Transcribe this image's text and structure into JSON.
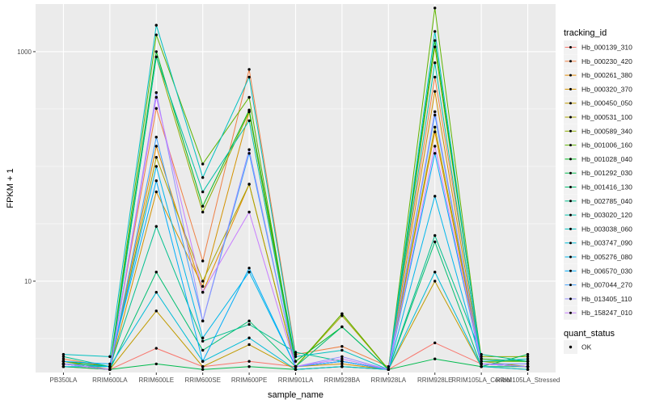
{
  "chart_data": {
    "type": "line",
    "xlabel": "sample_name",
    "ylabel": "FPKM + 1",
    "y_scale": "log10",
    "ylim": [
      1.6,
      2600
    ],
    "y_ticks": [
      10,
      1000
    ],
    "y_tick_labels": [
      "10",
      "1000"
    ],
    "grid": true,
    "legend_position": "right",
    "legend_title": "tracking_id",
    "shape_legend_title": "quant_status",
    "shape_legend_items": [
      "OK"
    ],
    "categories": [
      "PB350LA",
      "RRIM600LA",
      "RRIM600LE",
      "RRIM600SE",
      "RRIM600PE",
      "RRIM901LA",
      "RRIM928BA",
      "RRIM928LA",
      "RRIM928LE",
      "RRIM105LA_Control",
      "RRIM105LA_Stressed"
    ],
    "series": [
      {
        "name": "Hb_000139_310",
        "color": "#F8766D",
        "values": [
          1.9,
          1.7,
          2.6,
          1.8,
          2.0,
          1.8,
          2.0,
          1.7,
          2.9,
          1.9,
          1.8
        ]
      },
      {
        "name": "Hb_000230_420",
        "color": "#EE8044",
        "values": [
          2.1,
          1.8,
          320,
          15,
          700,
          2.3,
          2.7,
          1.8,
          600,
          2.1,
          2.0
        ]
      },
      {
        "name": "Hb_000261_380",
        "color": "#E28A00",
        "values": [
          2.0,
          1.7,
          150,
          8,
          70,
          1.8,
          2.0,
          1.7,
          200,
          1.9,
          1.8
        ]
      },
      {
        "name": "Hb_000320_370",
        "color": "#D39200",
        "values": [
          1.9,
          1.7,
          60,
          9,
          300,
          1.8,
          1.9,
          1.7,
          450,
          1.9,
          1.8
        ]
      },
      {
        "name": "Hb_000450_050",
        "color": "#C09B00",
        "values": [
          1.8,
          1.7,
          5.5,
          1.8,
          2.8,
          1.7,
          1.8,
          1.7,
          10,
          1.8,
          1.7
        ]
      },
      {
        "name": "Hb_000531_100",
        "color": "#A9A400",
        "values": [
          2.0,
          1.7,
          120,
          10,
          70,
          1.8,
          5.0,
          1.7,
          220,
          2.0,
          1.8
        ]
      },
      {
        "name": "Hb_000589_340",
        "color": "#8CAB00",
        "values": [
          1.9,
          1.7,
          900,
          40,
          300,
          1.8,
          5.2,
          1.7,
          1100,
          2.2,
          2.2
        ]
      },
      {
        "name": "Hb_001006_160",
        "color": "#5EB300",
        "values": [
          1.9,
          1.8,
          1400,
          105,
          400,
          1.8,
          5.2,
          1.7,
          2400,
          2.0,
          2.0
        ]
      },
      {
        "name": "Hb_001028_040",
        "color": "#00B81F",
        "values": [
          2.0,
          1.8,
          1000,
          45,
          310,
          2.0,
          4.0,
          1.7,
          1250,
          2.1,
          2.0
        ]
      },
      {
        "name": "Hb_001292_030",
        "color": "#00BB4E",
        "values": [
          1.8,
          1.7,
          1.9,
          1.7,
          1.8,
          1.7,
          1.8,
          1.7,
          2.1,
          1.8,
          2.3
        ]
      },
      {
        "name": "Hb_001416_130",
        "color": "#00BE70",
        "values": [
          1.9,
          1.7,
          12,
          2.5,
          4.5,
          1.8,
          4.0,
          1.7,
          22,
          1.8,
          1.8
        ]
      },
      {
        "name": "Hb_002785_040",
        "color": "#00C08E",
        "values": [
          2.2,
          1.8,
          30,
          3.0,
          4.2,
          2.4,
          2.0,
          1.7,
          25,
          2.3,
          2.0
        ]
      },
      {
        "name": "Hb_003020_120",
        "color": "#00C1A9",
        "values": [
          1.9,
          1.7,
          900,
          60,
          250,
          1.8,
          2.0,
          1.7,
          800,
          1.9,
          1.8
        ]
      },
      {
        "name": "Hb_003038_060",
        "color": "#00C0C1",
        "values": [
          2.3,
          2.2,
          1700,
          80,
          600,
          2.2,
          2.5,
          1.7,
          1500,
          2.0,
          2.1
        ]
      },
      {
        "name": "Hb_003747_090",
        "color": "#00BCD6",
        "values": [
          1.8,
          1.8,
          8,
          2.0,
          3.2,
          1.7,
          1.8,
          1.7,
          12,
          1.8,
          1.7
        ]
      },
      {
        "name": "Hb_005276_080",
        "color": "#00B6EB",
        "values": [
          1.9,
          1.8,
          100,
          3.2,
          12,
          1.8,
          2.0,
          1.7,
          55,
          1.9,
          1.8
        ]
      },
      {
        "name": "Hb_006570_030",
        "color": "#00ADFA",
        "values": [
          2.0,
          1.9,
          75,
          2.0,
          13,
          1.8,
          2.0,
          1.7,
          130,
          1.9,
          1.8
        ]
      },
      {
        "name": "Hb_007044_270",
        "color": "#3DA0FF",
        "values": [
          1.9,
          1.7,
          180,
          4.5,
          130,
          1.8,
          2.0,
          1.7,
          280,
          1.9,
          1.9
        ]
      },
      {
        "name": "Hb_013405_110",
        "color": "#9590FF",
        "values": [
          1.9,
          1.7,
          440,
          4.5,
          140,
          1.8,
          2.2,
          1.7,
          300,
          1.9,
          1.9
        ]
      },
      {
        "name": "Hb_158247_010",
        "color": "#C77CFF",
        "values": [
          1.9,
          1.7,
          400,
          8,
          40,
          1.8,
          2.1,
          1.7,
          150,
          1.9,
          1.8
        ]
      }
    ]
  }
}
